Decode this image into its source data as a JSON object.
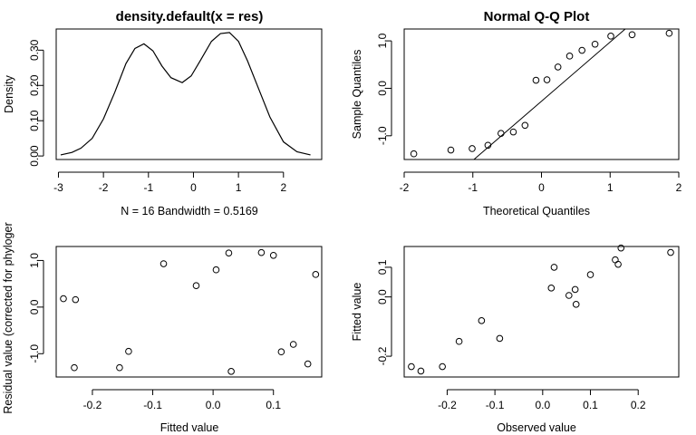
{
  "chart_data": [
    {
      "type": "line",
      "title": "density.default(x = res)",
      "xlabel": "N = 16   Bandwidth = 0.5169",
      "ylabel": "Density",
      "xlim": [
        -3.05,
        2.85
      ],
      "ylim": [
        -0.01,
        0.36
      ],
      "xticks": [
        -3,
        -2,
        -1,
        0,
        1,
        2
      ],
      "yticks": [
        0.0,
        0.1,
        0.2,
        0.3
      ],
      "ytick_labels": [
        "0.00",
        "0.10",
        "0.20",
        "0.30"
      ],
      "grid": false,
      "series": [
        {
          "x": [
            -2.95,
            -2.7,
            -2.5,
            -2.25,
            -2.0,
            -1.75,
            -1.5,
            -1.3,
            -1.1,
            -0.9,
            -0.7,
            -0.5,
            -0.25,
            -0.05,
            0.15,
            0.4,
            0.6,
            0.8,
            1.0,
            1.2,
            1.45,
            1.7,
            2.0,
            2.3,
            2.6
          ],
          "y": [
            0.003,
            0.01,
            0.022,
            0.05,
            0.105,
            0.18,
            0.262,
            0.305,
            0.318,
            0.298,
            0.255,
            0.222,
            0.208,
            0.227,
            0.27,
            0.325,
            0.347,
            0.35,
            0.325,
            0.27,
            0.19,
            0.11,
            0.04,
            0.012,
            0.003
          ]
        }
      ]
    },
    {
      "type": "scatter",
      "title": "Normal Q-Q Plot",
      "xlabel": "Theoretical Quantiles",
      "ylabel": "Sample Quantiles",
      "xlim": [
        -2.0,
        2.0
      ],
      "ylim": [
        -1.5,
        1.25
      ],
      "xticks": [
        -2,
        -1,
        0,
        1,
        2
      ],
      "yticks": [
        -1.0,
        0.0,
        1.0
      ],
      "ytick_labels": [
        "-1.0",
        "0.0",
        "1.0"
      ],
      "grid": false,
      "series": [
        {
          "x": [
            -1.86,
            -1.32,
            -1.01,
            -0.78,
            -0.59,
            -0.41,
            -0.24,
            -0.08,
            0.08,
            0.24,
            0.41,
            0.59,
            0.78,
            1.01,
            1.32,
            1.86
          ],
          "y": [
            -1.38,
            -1.3,
            -1.27,
            -1.2,
            -0.95,
            -0.92,
            -0.78,
            0.17,
            0.18,
            0.45,
            0.68,
            0.8,
            0.93,
            1.1,
            1.13,
            1.16
          ]
        }
      ],
      "reference_line": {
        "x": [
          -1.0,
          1.22
        ],
        "y": [
          -1.52,
          1.25
        ]
      }
    },
    {
      "type": "scatter",
      "title": "",
      "xlabel": "Fitted value",
      "ylabel": "Residual value (corrected for phyloger",
      "xlim": [
        -0.26,
        0.18
      ],
      "ylim": [
        -1.5,
        1.3
      ],
      "xticks": [
        -0.2,
        -0.1,
        0.0,
        0.1
      ],
      "xtick_labels": [
        "-0.2",
        "-0.1",
        "0.0",
        "0.1"
      ],
      "yticks": [
        -1.0,
        0.0,
        1.0
      ],
      "ytick_labels": [
        "-1.0",
        "0.0",
        "1.0"
      ],
      "grid": false,
      "series": [
        {
          "x": [
            -0.248,
            -0.228,
            -0.23,
            -0.155,
            -0.14,
            -0.082,
            -0.028,
            0.005,
            0.026,
            0.03,
            0.08,
            0.1,
            0.113,
            0.133,
            0.157,
            0.17
          ],
          "y": [
            0.18,
            0.16,
            -1.3,
            -1.3,
            -0.95,
            0.93,
            0.46,
            0.8,
            1.16,
            -1.38,
            1.17,
            1.11,
            -0.96,
            -0.8,
            -1.22,
            0.7
          ]
        }
      ]
    },
    {
      "type": "scatter",
      "title": "",
      "xlabel": "Observed value",
      "ylabel": "Fitted value",
      "xlim": [
        -0.29,
        0.285
      ],
      "ylim": [
        -0.27,
        0.17
      ],
      "xticks": [
        -0.2,
        -0.1,
        0.0,
        0.1,
        0.2
      ],
      "xtick_labels": [
        "-0.2",
        "-0.1",
        "0.0",
        "0.1",
        "0.2"
      ],
      "yticks": [
        -0.2,
        0.0,
        0.1
      ],
      "ytick_labels": [
        "-0.2",
        "0.0",
        "0.1"
      ],
      "grid": false,
      "series": [
        {
          "x": [
            -0.275,
            -0.255,
            -0.21,
            -0.175,
            -0.128,
            -0.09,
            0.018,
            0.024,
            0.055,
            0.068,
            0.07,
            0.1,
            0.152,
            0.158,
            0.164,
            0.268
          ],
          "y": [
            -0.235,
            -0.25,
            -0.235,
            -0.15,
            -0.08,
            -0.14,
            0.03,
            0.1,
            0.005,
            0.025,
            -0.025,
            0.075,
            0.125,
            0.11,
            0.165,
            0.15
          ]
        }
      ]
    }
  ]
}
